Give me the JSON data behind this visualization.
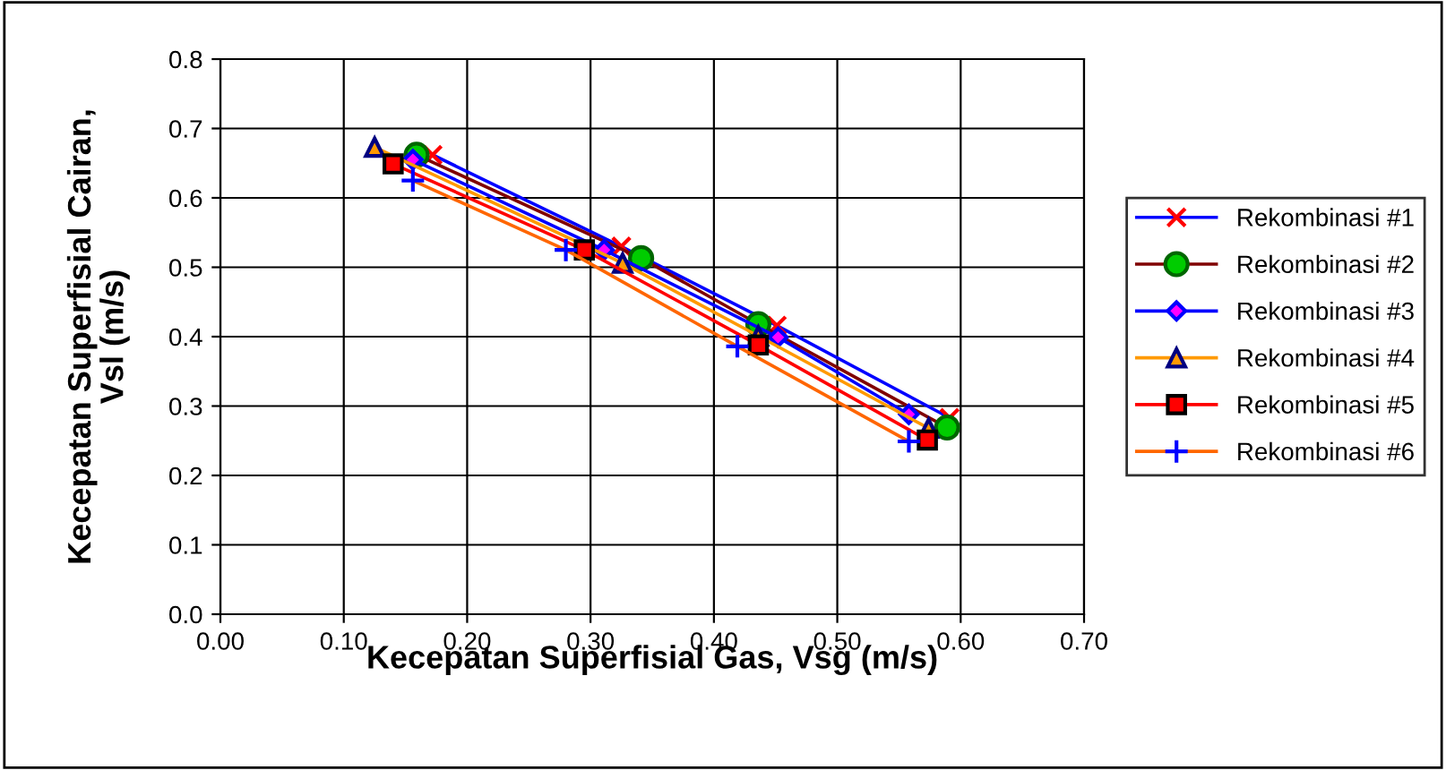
{
  "chart_data": {
    "type": "line",
    "xlabel": "Kecepatan Superfisial Gas, Vsg (m/s)",
    "ylabel": "Kecepatan Superfisial Cairan,\nVsl (m/s)",
    "xlim": [
      0,
      0.7
    ],
    "xticks": [
      {
        "value": 0,
        "label": "0.00"
      },
      {
        "value": 0.1,
        "label": "0.10"
      },
      {
        "value": 0.2,
        "label": "0.20"
      },
      {
        "value": 0.3,
        "label": "0.30"
      },
      {
        "value": 0.4,
        "label": "0.40"
      },
      {
        "value": 0.5,
        "label": "0.50"
      },
      {
        "value": 0.6,
        "label": "0.60"
      },
      {
        "value": 0.7,
        "label": "0.70"
      }
    ],
    "ylim": [
      0,
      0.8
    ],
    "yticks": [
      {
        "value": 0,
        "label": "0.0"
      },
      0.1,
      0.2,
      0.3,
      0.4,
      0.5,
      0.6,
      0.7,
      0.8
    ],
    "grid": true,
    "legend": "right",
    "line_style": "solid",
    "series": [
      {
        "name": "Rekombinasi #1",
        "color": "#0000ff",
        "marker": "cross",
        "x": [
          0.172,
          0.325,
          0.451,
          0.591
        ],
        "values": [
          0.662,
          0.53,
          0.416,
          0.283
        ]
      },
      {
        "name": "Rekombinasi #2",
        "color": "#800000",
        "marker": "circle",
        "x": [
          0.159,
          0.341,
          0.436,
          0.589
        ],
        "values": [
          0.662,
          0.513,
          0.418,
          0.269
        ]
      },
      {
        "name": "Rekombinasi #3",
        "color": "#0000ff",
        "marker": "diamond",
        "x": [
          0.156,
          0.311,
          0.452,
          0.558
        ],
        "values": [
          0.655,
          0.525,
          0.399,
          0.288
        ]
      },
      {
        "name": "Rekombinasi #4",
        "color": "#ff9900",
        "marker": "triangle",
        "x": [
          0.125,
          0.326,
          0.436,
          0.574
        ],
        "values": [
          0.673,
          0.506,
          0.401,
          0.268
        ]
      },
      {
        "name": "Rekombinasi #5",
        "color": "#ff0000",
        "marker": "square",
        "x": [
          0.14,
          0.295,
          0.436,
          0.573
        ],
        "values": [
          0.649,
          0.525,
          0.388,
          0.251
        ]
      },
      {
        "name": "Rekombinasi #6",
        "color": "#ff6600",
        "marker": "plus",
        "x": [
          0.156,
          0.28,
          0.419,
          0.558
        ],
        "values": [
          0.625,
          0.525,
          0.386,
          0.249
        ]
      }
    ]
  }
}
